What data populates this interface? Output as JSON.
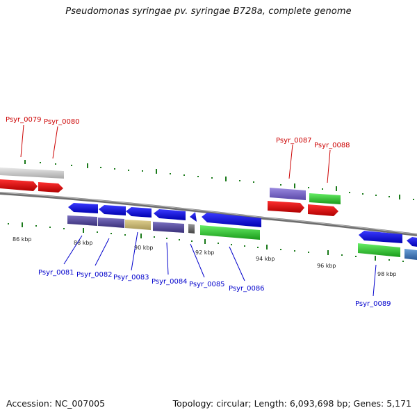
{
  "title": "Pseudomonas syringae pv. syringae B728a, complete genome",
  "footer": {
    "accession": "Accession: NC_007005",
    "summary": "Topology: circular; Length: 6,093,698 bp; Genes: 5,171"
  },
  "colors": {
    "top_label": "#cc0000",
    "bottom_label": "#0000cc",
    "backbone": "#777777",
    "tick": "#1a7a1a"
  },
  "scale_labels": [
    "86 kbp",
    "88 kbp",
    "90 kbp",
    "92 kbp",
    "94 kbp",
    "96 kbp",
    "98 kbp"
  ],
  "gene_labels": {
    "top": [
      "Psyr_0079",
      "Psyr_0080",
      "Psyr_0087",
      "Psyr_0088"
    ],
    "bottom": [
      "Psyr_0081",
      "Psyr_0082",
      "Psyr_0083",
      "Psyr_0084",
      "Psyr_0085",
      "Psyr_0086",
      "Psyr_0089"
    ]
  }
}
